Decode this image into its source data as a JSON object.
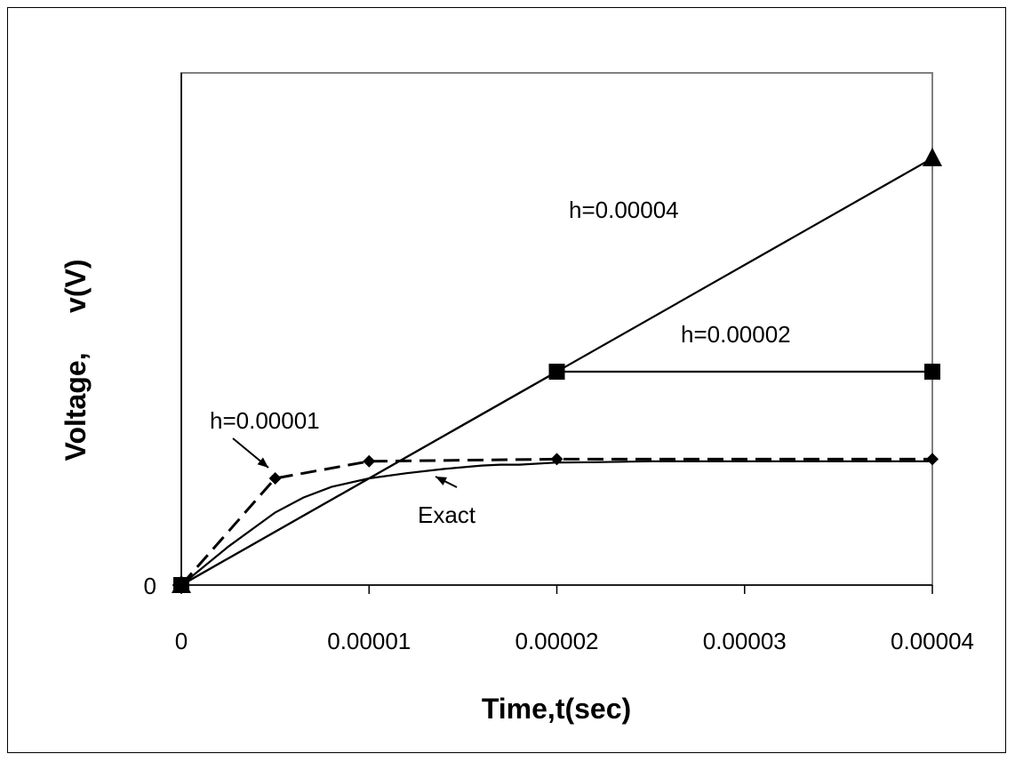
{
  "chart_data": {
    "type": "line",
    "title": "",
    "xlabel": "Time,t(sec)",
    "ylabel": "Voltage,     v(V)",
    "xlim": [
      0,
      4e-05
    ],
    "ylim": [
      0,
      1.2
    ],
    "grid": false,
    "legend": "none",
    "x_tick_labels": [
      "0",
      "0.00001",
      "0.00002",
      "0.00003",
      "0.00004"
    ],
    "x_tick_values": [
      0,
      1e-05,
      2e-05,
      3e-05,
      4e-05
    ],
    "y_tick_labels": [
      "0"
    ],
    "y_tick_values": [
      0
    ],
    "series": [
      {
        "name": "h=0.00004",
        "style": "solid",
        "marker": "triangle",
        "x": [
          0,
          4e-05
        ],
        "y": [
          0,
          1.0
        ]
      },
      {
        "name": "h=0.00002",
        "style": "solid",
        "marker": "square",
        "x": [
          0,
          2e-05,
          4e-05
        ],
        "y": [
          0,
          0.5,
          0.5
        ]
      },
      {
        "name": "h=0.00001",
        "style": "dashed",
        "marker": "diamond",
        "x": [
          0,
          5e-06,
          1e-05,
          2e-05,
          4e-05
        ],
        "y": [
          0,
          0.25,
          0.29,
          0.295,
          0.295
        ]
      },
      {
        "name": "Exact",
        "style": "solid",
        "marker": "none",
        "x": [
          0,
          2.5e-06,
          5e-06,
          6.5e-06,
          8e-06,
          1e-05,
          1.2e-05,
          1.4e-05,
          1.6e-05,
          1.7e-05,
          1.8e-05,
          2e-05,
          2.2e-05,
          2.5e-05,
          3e-05,
          4e-05
        ],
        "y": [
          0,
          0.09,
          0.17,
          0.205,
          0.23,
          0.25,
          0.262,
          0.272,
          0.28,
          0.282,
          0.282,
          0.287,
          0.288,
          0.29,
          0.29,
          0.29
        ]
      }
    ],
    "annotations": [
      {
        "text": "h=0.00004",
        "series": 0
      },
      {
        "text": "h=0.00002",
        "series": 1
      },
      {
        "text": "h=0.00001",
        "series": 2
      },
      {
        "text": "Exact",
        "series": 3
      }
    ]
  }
}
